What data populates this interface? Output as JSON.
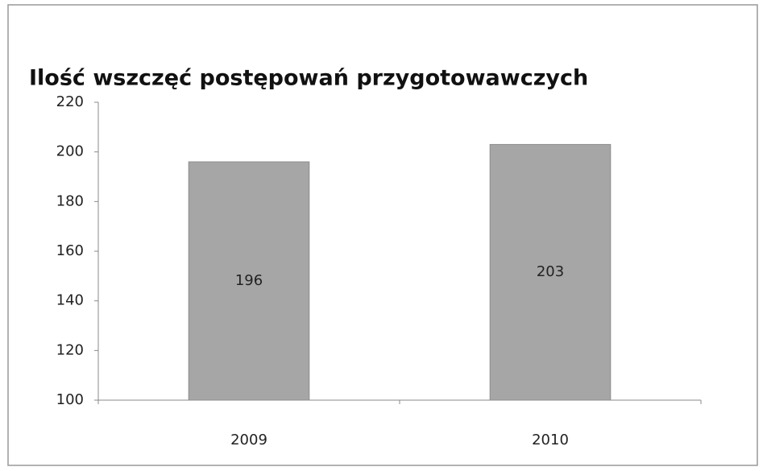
{
  "chart_data": {
    "type": "bar",
    "title": "Ilość wszczęć postępowań przygotowawczych",
    "categories": [
      "2009",
      "2010"
    ],
    "values": [
      196,
      203
    ],
    "color": "#a6a6a6",
    "ylim": [
      100,
      220
    ],
    "yticks": [
      100,
      120,
      140,
      160,
      180,
      200,
      220
    ],
    "grid": false
  }
}
